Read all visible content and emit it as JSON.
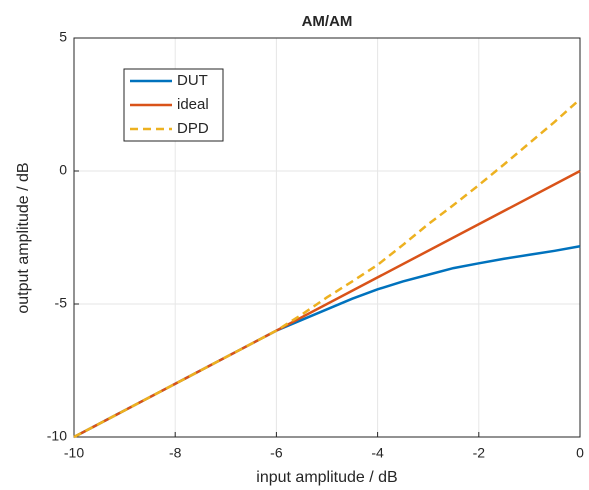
{
  "chart_data": {
    "type": "line",
    "title": "AM/AM",
    "x_label": "input amplitude / dB",
    "y_label": "output amplitude / dB",
    "xlim": [
      -10,
      0
    ],
    "ylim": [
      -10,
      5
    ],
    "xticks": [
      -10,
      -8,
      -6,
      -4,
      -2,
      0
    ],
    "yticks": [
      -10,
      -5,
      0,
      5
    ],
    "grid": true,
    "legend_position": "upper-left",
    "series": [
      {
        "name": "DUT",
        "color": "#0072bd",
        "dash": "solid",
        "x": [
          -10,
          -9,
          -8,
          -7,
          -6,
          -5.5,
          -5,
          -4.5,
          -4,
          -3.5,
          -3,
          -2.5,
          -2,
          -1.5,
          -1,
          -0.5,
          0
        ],
        "values": [
          -10,
          -9,
          -8,
          -7,
          -6,
          -5.6,
          -5.2,
          -4.8,
          -4.45,
          -4.15,
          -3.9,
          -3.65,
          -3.47,
          -3.3,
          -3.15,
          -3.0,
          -2.83
        ]
      },
      {
        "name": "ideal",
        "color": "#d95319",
        "dash": "solid",
        "x": [
          -10,
          0
        ],
        "values": [
          -10,
          0
        ]
      },
      {
        "name": "DPD",
        "color": "#edb120",
        "dash": "dashed",
        "x": [
          -10,
          -8,
          -6,
          -5.5,
          -5,
          -4.5,
          -4,
          -3.5,
          -3,
          -2.5,
          -2,
          -1.5,
          -1,
          -0.5,
          0
        ],
        "values": [
          -10,
          -8,
          -6,
          -5.4,
          -4.75,
          -4.15,
          -3.53,
          -2.78,
          -2.0,
          -1.28,
          -0.53,
          0.25,
          1.05,
          1.85,
          2.7
        ]
      }
    ]
  }
}
